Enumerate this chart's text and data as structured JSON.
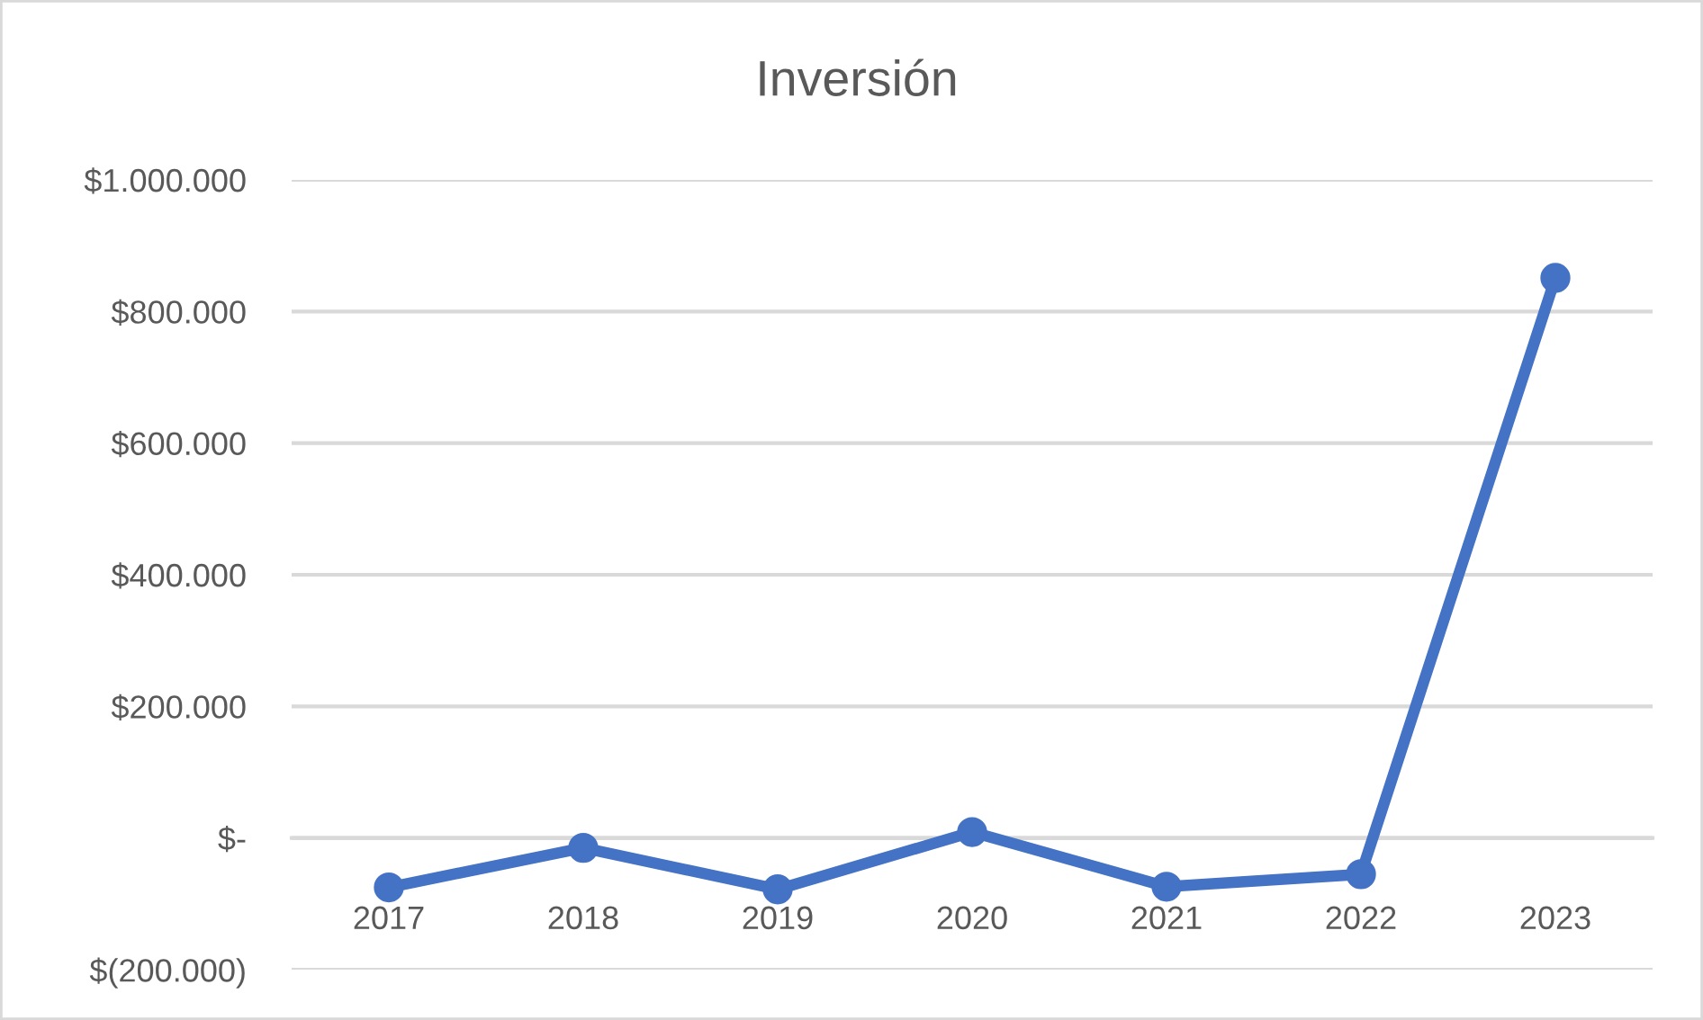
{
  "chart_data": {
    "type": "line",
    "title": "Inversión",
    "categories": [
      "2017",
      "2018",
      "2019",
      "2020",
      "2021",
      "2022",
      "2023"
    ],
    "series": [
      {
        "color": "#4472c4",
        "values": [
          -75000,
          -15000,
          -78000,
          9000,
          -74000,
          -55000,
          851000
        ]
      }
    ],
    "ylim": [
      -200000,
      1000000
    ],
    "yticks": [
      {
        "value": -200000,
        "label": "$(200.000)"
      },
      {
        "value": 0,
        "label": "$-"
      },
      {
        "value": 200000,
        "label": "$200.000"
      },
      {
        "value": 400000,
        "label": "$400.000"
      },
      {
        "value": 600000,
        "label": "$600.000"
      },
      {
        "value": 800000,
        "label": "$800.000"
      },
      {
        "value": 1000000,
        "label": "$1.000.000"
      }
    ],
    "grid": "y",
    "marker": "circle",
    "line_style": "solid"
  }
}
